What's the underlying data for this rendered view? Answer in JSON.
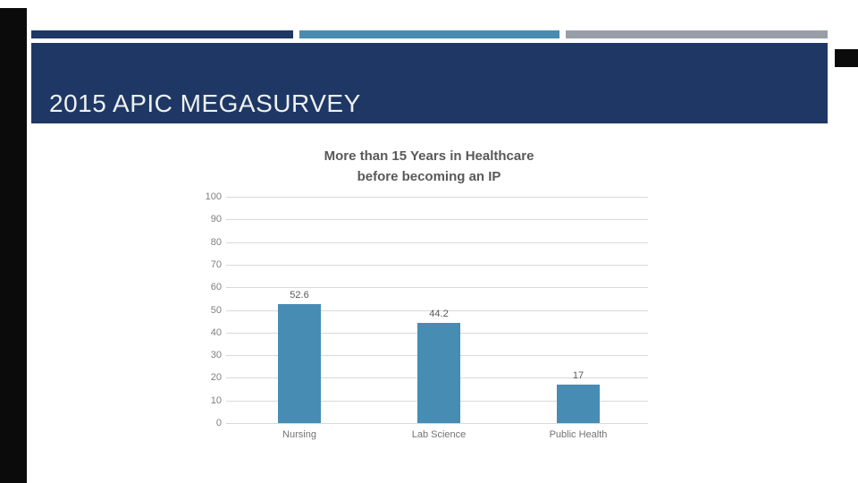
{
  "header": {
    "title": "2015 APIC MEGASURVEY",
    "background": "#1e3765",
    "text_color": "#eef1ee"
  },
  "decor": {
    "left_strip_color": "#0b0b0b",
    "top_right_notch_color": "#0b0b0b",
    "accent_bars": [
      {
        "name": "navy",
        "color": "#1e3765"
      },
      {
        "name": "steel-blue",
        "color": "#4a8cae"
      },
      {
        "name": "gray",
        "color": "#989ea7"
      }
    ]
  },
  "chart_data": {
    "type": "bar",
    "title_line1": "More than 15 Years in Healthcare",
    "title_line2": "before becoming an IP",
    "categories": [
      "Nursing",
      "Lab Science",
      "Public Health"
    ],
    "values": [
      52.6,
      44.2,
      17
    ],
    "value_labels": [
      "52.6",
      "44.2",
      "17"
    ],
    "ylim": [
      0,
      100
    ],
    "yticks": [
      100,
      90,
      80,
      70,
      60,
      50,
      40,
      30,
      20,
      10,
      0
    ],
    "grid": true,
    "legend": false,
    "bar_color": "#478cb2",
    "gridline_color": "#d9d9d9",
    "title_color": "#595959",
    "axis_tick_color": "#7f7f7f",
    "category_label_color": "#737373",
    "value_label_color": "#595959"
  }
}
